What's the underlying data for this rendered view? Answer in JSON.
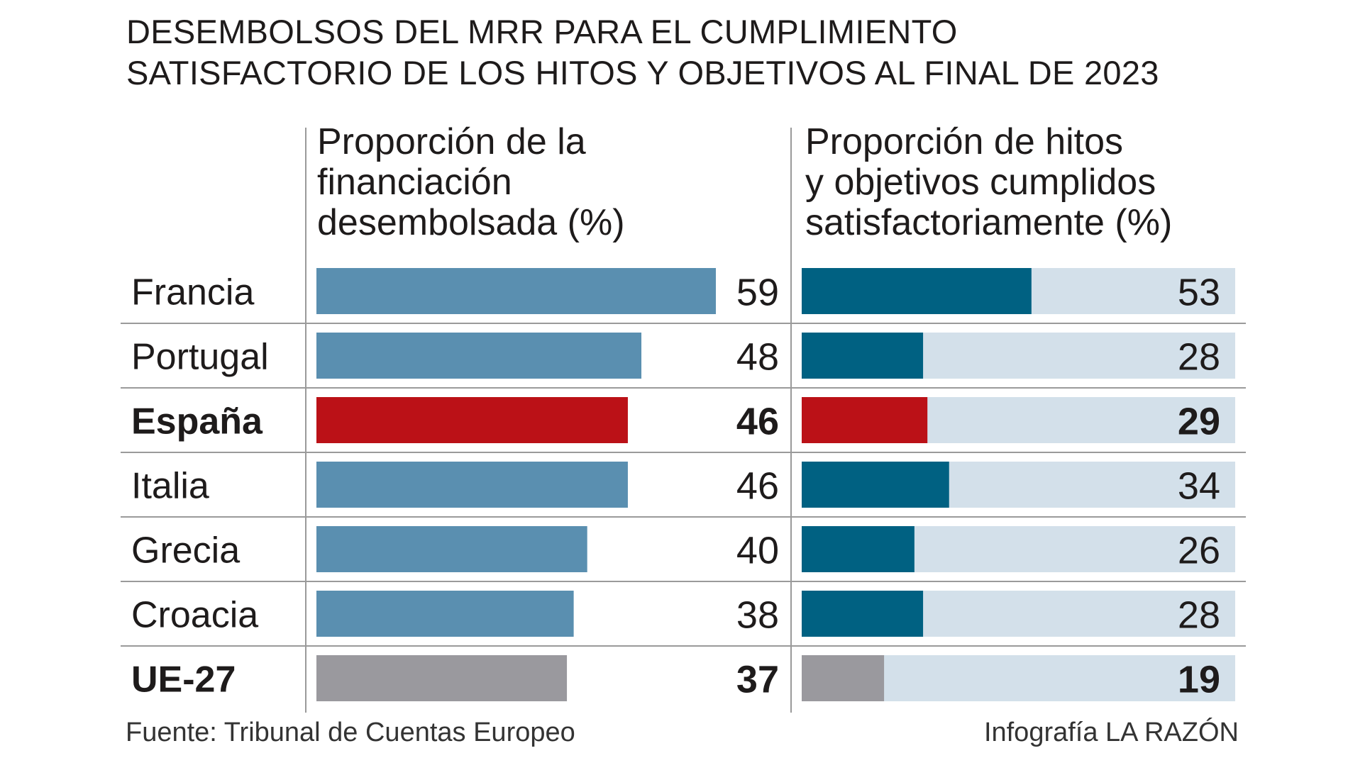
{
  "chart_data": {
    "type": "bar",
    "title": [
      "DESEMBOLSOS DEL MRR PARA EL CUMPLIMIENTO",
      "SATISFACTORIO DE LOS HITOS Y OBJETIVOS AL FINAL DE 2023"
    ],
    "categories": [
      "Francia",
      "Portugal",
      "España",
      "Italia",
      "Grecia",
      "Croacia",
      "UE-27"
    ],
    "highlighted": [
      "España",
      "UE-27"
    ],
    "series": [
      {
        "name": "Proporción de la financiación desembolsada (%)",
        "header_lines": [
          "Proporción de la",
          "financiación",
          "desembolsada (%)"
        ],
        "values": [
          59,
          48,
          46,
          46,
          40,
          38,
          37
        ],
        "xlim": [
          0,
          59
        ]
      },
      {
        "name": "Proporción de hitos y objetivos cumplidos satisfactoriamente (%)",
        "header_lines": [
          "Proporción de hitos",
          "y objetivos cumplidos",
          "satisfactoriamente  (%)"
        ],
        "values": [
          53,
          28,
          29,
          34,
          26,
          28,
          19
        ],
        "xlim": [
          0,
          100
        ]
      }
    ],
    "colors": {
      "left_bar": "#5a8fb0",
      "right_bar": "#006182",
      "right_track": "#d3e0ea",
      "highlight_spain": "#bb1117",
      "highlight_eu": "#9a999e",
      "grid": "#9a9a9a"
    }
  },
  "source": "Fuente: Tribunal de Cuentas Europeo",
  "credit": "Infografía LA RAZÓN"
}
